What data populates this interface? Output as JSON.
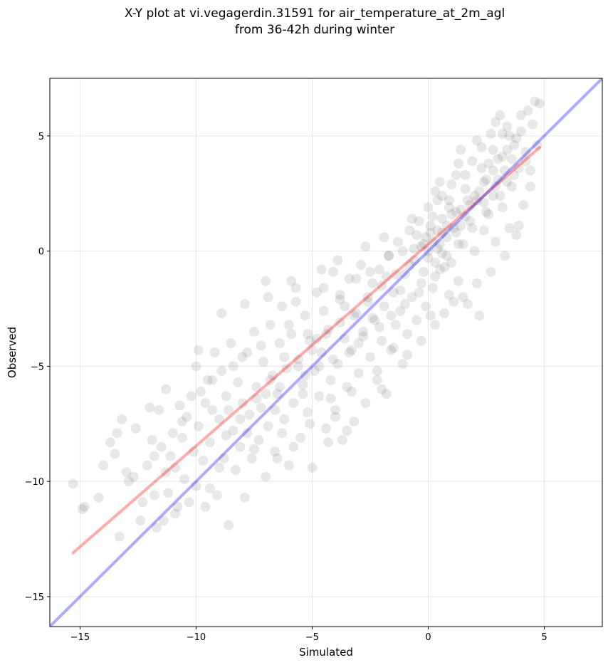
{
  "chart_data": {
    "type": "scatter",
    "title_line1": "X-Y plot at vi.vegagerdin.31591 for air_temperature_at_2m_agl",
    "title_line2": "from 36-42h during winter",
    "xlabel": "Simulated",
    "ylabel": "Observed",
    "xlim": [
      -16.3,
      7.5
    ],
    "ylim": [
      -16.3,
      7.5
    ],
    "x_ticks": [
      -15,
      -10,
      -5,
      0,
      5
    ],
    "x_tick_labels": [
      "−15",
      "−10",
      "−5",
      "0",
      "5"
    ],
    "y_ticks": [
      -15,
      -10,
      -5,
      0,
      5
    ],
    "y_tick_labels": [
      "−15",
      "−10",
      "−5",
      "0",
      "5"
    ],
    "grid": true,
    "point_color": "#000000",
    "point_alpha": 0.09,
    "points": [
      [
        -15.3,
        -10.1
      ],
      [
        -14.9,
        -11.2
      ],
      [
        -14.8,
        -11.1
      ],
      [
        -14.2,
        -10.7
      ],
      [
        -14.0,
        -9.3
      ],
      [
        -13.7,
        -8.3
      ],
      [
        -13.5,
        -8.8
      ],
      [
        -13.4,
        -7.9
      ],
      [
        -13.3,
        -12.4
      ],
      [
        -13.2,
        -7.3
      ],
      [
        -13.0,
        -9.6
      ],
      [
        -12.9,
        -10.0
      ],
      [
        -12.6,
        -7.7
      ],
      [
        -12.4,
        -11.7
      ],
      [
        -12.3,
        -10.9
      ],
      [
        -12.1,
        -9.3
      ],
      [
        -12.0,
        -6.8
      ],
      [
        -11.9,
        -8.2
      ],
      [
        -11.8,
        -10.6
      ],
      [
        -11.7,
        -12.0
      ],
      [
        -11.6,
        -6.9
      ],
      [
        -11.5,
        -8.5
      ],
      [
        -11.4,
        -11.7
      ],
      [
        -11.3,
        -9.6
      ],
      [
        -11.3,
        -6.0
      ],
      [
        -11.2,
        -10.5
      ],
      [
        -11.1,
        -8.9
      ],
      [
        -11.0,
        -7.9
      ],
      [
        -10.9,
        -9.4
      ],
      [
        -10.8,
        -11.1
      ],
      [
        -10.7,
        -6.7
      ],
      [
        -10.6,
        -8.1
      ],
      [
        -10.5,
        -9.9
      ],
      [
        -10.4,
        -7.2
      ],
      [
        -10.3,
        -10.9
      ],
      [
        -10.2,
        -6.3
      ],
      [
        -10.1,
        -8.7
      ],
      [
        -10.0,
        -5.0
      ],
      [
        -10.0,
        -10.2
      ],
      [
        -9.9,
        -7.6
      ],
      [
        -9.8,
        -6.1
      ],
      [
        -9.7,
        -9.1
      ],
      [
        -9.6,
        -11.1
      ],
      [
        -9.5,
        -5.6
      ],
      [
        -9.4,
        -8.3
      ],
      [
        -9.3,
        -6.9
      ],
      [
        -9.2,
        -4.4
      ],
      [
        -9.1,
        -10.6
      ],
      [
        -9.0,
        -7.3
      ],
      [
        -8.9,
        -5.2
      ],
      [
        -8.8,
        -9.0
      ],
      [
        -8.7,
        -6.3
      ],
      [
        -8.6,
        -11.9
      ],
      [
        -8.5,
        -4.0
      ],
      [
        -8.4,
        -7.8
      ],
      [
        -8.3,
        -9.5
      ],
      [
        -8.2,
        -5.7
      ],
      [
        -8.1,
        -8.5
      ],
      [
        -8.0,
        -6.6
      ],
      [
        -7.9,
        -10.7
      ],
      [
        -7.8,
        -4.4
      ],
      [
        -7.7,
        -7.1
      ],
      [
        -7.6,
        -9.0
      ],
      [
        -7.5,
        -3.5
      ],
      [
        -7.4,
        -5.9
      ],
      [
        -7.3,
        -8.2
      ],
      [
        -7.2,
        -6.8
      ],
      [
        -7.1,
        -4.8
      ],
      [
        -7.0,
        -1.3
      ],
      [
        -7.0,
        -9.8
      ],
      [
        -6.9,
        -7.6
      ],
      [
        -6.8,
        -3.2
      ],
      [
        -6.7,
        -5.4
      ],
      [
        -6.6,
        -8.7
      ],
      [
        -6.5,
        -6.2
      ],
      [
        -6.4,
        -4.0
      ],
      [
        -6.3,
        -2.4
      ],
      [
        -6.2,
        -7.3
      ],
      [
        -6.1,
        -5.1
      ],
      [
        -6.0,
        -9.3
      ],
      [
        -5.9,
        -3.6
      ],
      [
        -5.8,
        -6.6
      ],
      [
        -5.7,
        -1.6
      ],
      [
        -5.6,
        -4.7
      ],
      [
        -5.5,
        -8.1
      ],
      [
        -5.4,
        -5.8
      ],
      [
        -5.3,
        -2.8
      ],
      [
        -5.2,
        -7.0
      ],
      [
        -5.1,
        -3.9
      ],
      [
        -5.0,
        -9.4
      ],
      [
        -4.9,
        -5.2
      ],
      [
        -4.8,
        -1.8
      ],
      [
        -4.7,
        -6.3
      ],
      [
        -4.6,
        -4.4
      ],
      [
        -4.5,
        -2.6
      ],
      [
        -4.4,
        -7.7
      ],
      [
        -4.3,
        -3.4
      ],
      [
        -4.2,
        -5.6
      ],
      [
        -4.1,
        -0.9
      ],
      [
        -4.0,
        -6.9
      ],
      [
        -3.9,
        -4.9
      ],
      [
        -3.8,
        -2.1
      ],
      [
        -3.7,
        -8.2
      ],
      [
        -3.6,
        -3.8
      ],
      [
        -3.5,
        -5.9
      ],
      [
        -3.4,
        -1.2
      ],
      [
        -3.3,
        -4.3
      ],
      [
        -3.2,
        -7.4
      ],
      [
        -3.1,
        -2.7
      ],
      [
        -3.0,
        -5.3
      ],
      [
        -2.9,
        -0.6
      ],
      [
        -2.8,
        -3.5
      ],
      [
        -2.7,
        -6.6
      ],
      [
        -2.6,
        -2.0
      ],
      [
        -2.5,
        -4.6
      ],
      [
        -2.4,
        -1.4
      ],
      [
        -2.3,
        -3.0
      ],
      [
        -2.2,
        -5.2
      ],
      [
        -2.1,
        -0.8
      ],
      [
        -2.0,
        -3.9
      ],
      [
        -1.9,
        -2.4
      ],
      [
        -1.8,
        -6.2
      ],
      [
        -1.7,
        -0.2
      ],
      [
        -1.6,
        -4.3
      ],
      [
        -1.5,
        -1.8
      ],
      [
        -1.4,
        -3.2
      ],
      [
        -1.3,
        0.4
      ],
      [
        -1.2,
        -2.6
      ],
      [
        -1.1,
        -4.9
      ],
      [
        -1.0,
        -1.0
      ],
      [
        -0.9,
        -3.6
      ],
      [
        -0.8,
        0.9
      ],
      [
        -0.7,
        -2.0
      ],
      [
        -0.6,
        -0.4
      ],
      [
        -0.5,
        -3.0
      ],
      [
        -0.4,
        1.3
      ],
      [
        -0.3,
        -1.4
      ],
      [
        -0.2,
        0.3
      ],
      [
        -0.1,
        -2.4
      ],
      [
        0.0,
        1.9
      ],
      [
        0.0,
        -0.3
      ],
      [
        0.1,
        0.8
      ],
      [
        0.2,
        -1.6
      ],
      [
        0.3,
        2.6
      ],
      [
        0.4,
        0.1
      ],
      [
        0.5,
        -0.8
      ],
      [
        0.6,
        1.4
      ],
      [
        0.7,
        -2.7
      ],
      [
        0.8,
        0.6
      ],
      [
        0.9,
        2.2
      ],
      [
        1.0,
        -0.5
      ],
      [
        1.1,
        1.0
      ],
      [
        1.2,
        3.3
      ],
      [
        1.3,
        -1.3
      ],
      [
        1.4,
        1.8
      ],
      [
        1.5,
        0.3
      ],
      [
        1.6,
        2.7
      ],
      [
        1.7,
        -2.3
      ],
      [
        1.8,
        1.3
      ],
      [
        1.9,
        3.9
      ],
      [
        2.0,
        0.0
      ],
      [
        2.1,
        2.2
      ],
      [
        2.2,
        -2.8
      ],
      [
        2.3,
        4.5
      ],
      [
        2.4,
        0.9
      ],
      [
        2.5,
        3.1
      ],
      [
        2.6,
        1.6
      ],
      [
        2.7,
        5.1
      ],
      [
        2.8,
        2.4
      ],
      [
        2.9,
        0.4
      ],
      [
        3.0,
        4.0
      ],
      [
        3.1,
        5.9
      ],
      [
        3.2,
        1.9
      ],
      [
        3.3,
        3.5
      ],
      [
        3.4,
        5.4
      ],
      [
        3.5,
        1.0
      ],
      [
        3.6,
        2.8
      ],
      [
        3.7,
        4.6
      ],
      [
        3.8,
        0.7
      ],
      [
        3.9,
        3.6
      ],
      [
        4.0,
        5.2
      ],
      [
        4.1,
        2.0
      ],
      [
        4.2,
        4.3
      ],
      [
        4.3,
        6.1
      ],
      [
        4.4,
        3.5
      ],
      [
        4.5,
        5.5
      ],
      [
        4.6,
        6.5
      ],
      [
        4.7,
        4.6
      ],
      [
        4.8,
        6.4
      ],
      [
        -9.6,
        -6.6
      ],
      [
        -9.0,
        -9.4
      ],
      [
        -8.4,
        -5.0
      ],
      [
        -7.8,
        -7.9
      ],
      [
        -7.2,
        -4.1
      ],
      [
        -6.6,
        -6.9
      ],
      [
        -6.0,
        -3.2
      ],
      [
        -5.4,
        -6.2
      ],
      [
        -4.8,
        -3.8
      ],
      [
        -4.2,
        -6.4
      ],
      [
        -3.6,
        -2.4
      ],
      [
        -3.0,
        -4.0
      ],
      [
        -2.4,
        -2.9
      ],
      [
        -1.8,
        -1.1
      ],
      [
        -1.2,
        -1.7
      ],
      [
        -0.6,
        0.1
      ],
      [
        -0.2,
        -0.9
      ],
      [
        0.2,
        0.4
      ],
      [
        0.6,
        -0.1
      ],
      [
        1.0,
        1.6
      ],
      [
        1.4,
        1.1
      ],
      [
        1.8,
        2.0
      ],
      [
        2.2,
        2.6
      ],
      [
        2.6,
        3.8
      ],
      [
        3.0,
        3.1
      ],
      [
        3.4,
        4.4
      ],
      [
        3.8,
        4.9
      ],
      [
        -8.0,
        -4.6
      ],
      [
        -7.4,
        -6.4
      ],
      [
        -6.8,
        -5.6
      ],
      [
        -6.2,
        -4.6
      ],
      [
        -5.6,
        -5.0
      ],
      [
        -5.0,
        -4.3
      ],
      [
        -4.4,
        -3.6
      ],
      [
        -3.8,
        -3.1
      ],
      [
        -3.2,
        -2.8
      ],
      [
        -2.6,
        -2.2
      ],
      [
        -2.0,
        -1.5
      ],
      [
        -1.4,
        -1.0
      ],
      [
        -0.8,
        -0.6
      ],
      [
        0.4,
        0.9
      ],
      [
        0.8,
        1.1
      ],
      [
        1.2,
        1.7
      ],
      [
        1.6,
        1.5
      ],
      [
        2.0,
        2.4
      ],
      [
        2.4,
        3.0
      ],
      [
        2.8,
        3.5
      ],
      [
        3.2,
        4.1
      ],
      [
        3.6,
        4.0
      ],
      [
        -10.6,
        -7.4
      ],
      [
        -11.8,
        -8.9
      ],
      [
        -12.7,
        -9.8
      ],
      [
        -10.9,
        -11.4
      ],
      [
        -9.4,
        -10.3
      ],
      [
        -8.7,
        -8.0
      ],
      [
        -7.5,
        -8.6
      ],
      [
        -6.3,
        -7.9
      ],
      [
        -5.1,
        -7.5
      ],
      [
        -4.0,
        -7.2
      ],
      [
        -3.3,
        -6.1
      ],
      [
        -2.2,
        -5.6
      ],
      [
        -1.5,
        -4.2
      ],
      [
        -0.9,
        -4.5
      ],
      [
        0.1,
        -2.8
      ],
      [
        0.9,
        -1.9
      ],
      [
        1.5,
        -2.0
      ],
      [
        2.1,
        -1.4
      ],
      [
        2.7,
        -0.9
      ],
      [
        3.3,
        -0.2
      ],
      [
        3.9,
        1.1
      ],
      [
        4.4,
        2.8
      ],
      [
        -8.9,
        -2.7
      ],
      [
        -7.9,
        -2.3
      ],
      [
        -6.9,
        -2.0
      ],
      [
        -5.9,
        -1.3
      ],
      [
        -4.6,
        -0.8
      ],
      [
        -3.9,
        -0.4
      ],
      [
        -2.7,
        0.2
      ],
      [
        -1.9,
        0.6
      ],
      [
        -0.7,
        1.4
      ],
      [
        0.5,
        3.0
      ],
      [
        1.3,
        3.8
      ],
      [
        2.1,
        4.8
      ],
      [
        2.9,
        5.6
      ],
      [
        3.5,
        5.0
      ],
      [
        4.0,
        5.9
      ],
      [
        -6.5,
        -9.0
      ],
      [
        -5.8,
        -8.5
      ],
      [
        -4.3,
        -8.3
      ],
      [
        -3.5,
        -7.8
      ],
      [
        -2.0,
        -6.0
      ],
      [
        -0.3,
        -3.9
      ],
      [
        0.3,
        -3.2
      ],
      [
        1.1,
        -2.2
      ],
      [
        -9.9,
        -4.3
      ],
      [
        -9.3,
        -5.6
      ],
      [
        -8.6,
        -6.9
      ],
      [
        -8.1,
        -7.3
      ],
      [
        -7.0,
        -6.2
      ],
      [
        -6.4,
        -5.9
      ],
      [
        -5.3,
        -5.4
      ],
      [
        -4.7,
        -5.0
      ],
      [
        -4.1,
        -4.7
      ],
      [
        -3.4,
        -4.4
      ],
      [
        -2.8,
        -3.7
      ],
      [
        -2.1,
        -3.3
      ],
      [
        -1.6,
        -2.8
      ],
      [
        -1.0,
        -2.3
      ],
      [
        -0.4,
        -1.8
      ],
      [
        0.3,
        -1.1
      ],
      [
        0.7,
        -0.7
      ],
      [
        1.3,
        0.3
      ],
      [
        1.9,
        1.0
      ],
      [
        2.5,
        1.7
      ],
      [
        3.1,
        2.4
      ],
      [
        3.7,
        3.3
      ],
      [
        4.2,
        3.9
      ],
      [
        -5.7,
        -2.2
      ],
      [
        -5.2,
        -3.6
      ],
      [
        -4.5,
        -1.6
      ],
      [
        -3.8,
        -1.9
      ],
      [
        -3.1,
        -1.2
      ],
      [
        -2.5,
        -0.9
      ],
      [
        -1.7,
        -0.2
      ],
      [
        -1.1,
        0.0
      ],
      [
        -0.5,
        0.7
      ],
      [
        0.1,
        1.1
      ],
      [
        0.4,
        2.2
      ],
      [
        0.9,
        1.9
      ],
      [
        1.6,
        3.3
      ],
      [
        2.3,
        3.6
      ],
      [
        2.8,
        4.4
      ],
      [
        3.2,
        5.1
      ],
      [
        1.4,
        4.4
      ],
      [
        1.0,
        2.9
      ],
      [
        0.6,
        2.4
      ],
      [
        0.2,
        1.5
      ],
      [
        -0.1,
        0.6
      ],
      [
        0.5,
        0.3
      ],
      [
        0.8,
        -0.2
      ],
      [
        0.0,
        0.0
      ],
      [
        0.3,
        -0.5
      ],
      [
        -0.3,
        0.2
      ],
      [
        0.6,
        0.8
      ],
      [
        1.2,
        0.8
      ],
      [
        1.7,
        2.2
      ],
      [
        2.4,
        2.1
      ],
      [
        2.9,
        2.8
      ],
      [
        3.4,
        3.0
      ]
    ],
    "regression_line": {
      "x": [
        -15.3,
        4.8
      ],
      "y": [
        -13.1,
        4.5
      ],
      "color": "#ff0000",
      "alpha": 0.33
    },
    "identity_line": {
      "x": [
        -16.3,
        7.5
      ],
      "y": [
        -16.3,
        7.5
      ],
      "color": "#0000ff",
      "alpha": 0.33
    }
  }
}
